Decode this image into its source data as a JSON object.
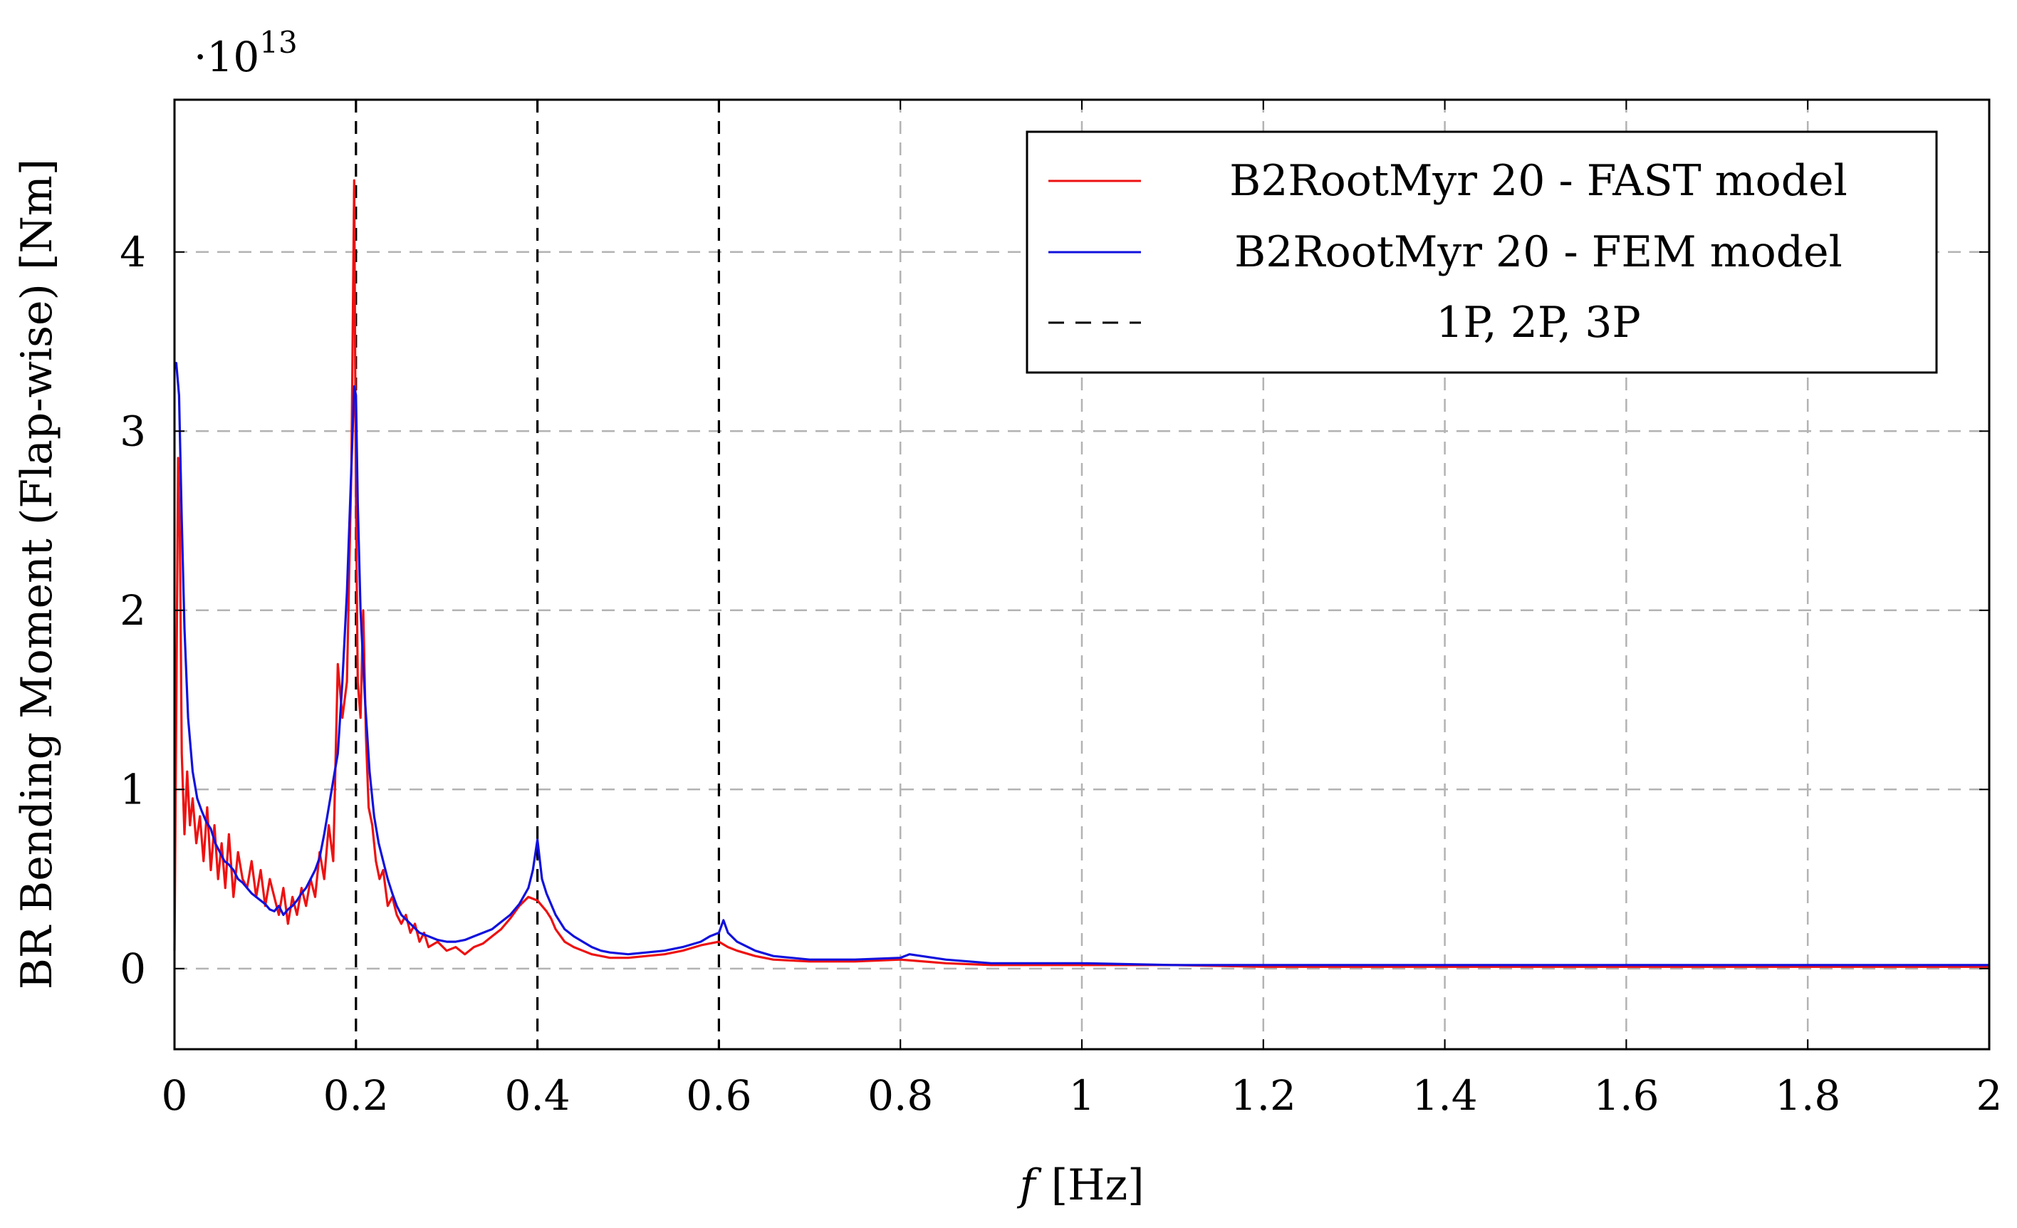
{
  "chart_data": {
    "type": "line",
    "title": "",
    "xlabel_italic": "f",
    "xlabel_unit": "[Hz]",
    "ylabel": "BR Bending Moment (Flap-wise) [Nm]",
    "y_multiplier_base": "·10",
    "y_multiplier_exp": "13",
    "xlim": [
      0,
      2
    ],
    "ylim": [
      -0.45,
      4.85
    ],
    "grid": true,
    "x_ticks": [
      0,
      0.2,
      0.4,
      0.6,
      0.8,
      1,
      1.2,
      1.4,
      1.6,
      1.8,
      2
    ],
    "x_tick_labels": [
      "0",
      "0.2",
      "0.4",
      "0.6",
      "0.8",
      "1",
      "1.2",
      "1.4",
      "1.6",
      "1.8",
      "2"
    ],
    "y_ticks": [
      0,
      1,
      2,
      3,
      4
    ],
    "y_tick_labels": [
      "0",
      "1",
      "2",
      "3",
      "4"
    ],
    "legend_position": "top-right",
    "reference_lines": {
      "name": "1P, 2P, 3P",
      "x": [
        0.2,
        0.4,
        0.6
      ],
      "color": "#000000"
    },
    "series": [
      {
        "name": "B2RootMyr 20 - FAST model",
        "color": "#ee1111",
        "x": [
          0,
          0.004,
          0.006,
          0.008,
          0.011,
          0.014,
          0.017,
          0.02,
          0.024,
          0.028,
          0.032,
          0.036,
          0.04,
          0.044,
          0.048,
          0.052,
          0.056,
          0.06,
          0.065,
          0.07,
          0.075,
          0.08,
          0.085,
          0.09,
          0.095,
          0.1,
          0.105,
          0.11,
          0.115,
          0.12,
          0.125,
          0.13,
          0.135,
          0.14,
          0.145,
          0.15,
          0.155,
          0.16,
          0.165,
          0.17,
          0.175,
          0.18,
          0.185,
          0.19,
          0.195,
          0.198,
          0.2,
          0.202,
          0.205,
          0.208,
          0.211,
          0.214,
          0.218,
          0.222,
          0.226,
          0.23,
          0.235,
          0.24,
          0.245,
          0.25,
          0.255,
          0.26,
          0.265,
          0.27,
          0.275,
          0.28,
          0.29,
          0.3,
          0.31,
          0.32,
          0.33,
          0.34,
          0.35,
          0.36,
          0.37,
          0.38,
          0.39,
          0.4,
          0.405,
          0.41,
          0.415,
          0.42,
          0.43,
          0.44,
          0.45,
          0.46,
          0.47,
          0.48,
          0.5,
          0.52,
          0.54,
          0.56,
          0.58,
          0.6,
          0.61,
          0.62,
          0.64,
          0.66,
          0.7,
          0.75,
          0.8,
          0.85,
          0.9,
          1.0,
          1.1,
          1.2,
          1.3,
          1.4,
          1.5,
          1.6,
          1.7,
          1.8,
          1.9,
          2.0
        ],
        "values": [
          0.1,
          2.85,
          2.4,
          1.2,
          0.75,
          1.1,
          0.8,
          0.95,
          0.7,
          0.85,
          0.6,
          0.9,
          0.55,
          0.8,
          0.5,
          0.7,
          0.45,
          0.75,
          0.4,
          0.65,
          0.5,
          0.45,
          0.6,
          0.4,
          0.55,
          0.35,
          0.5,
          0.4,
          0.3,
          0.45,
          0.25,
          0.4,
          0.3,
          0.45,
          0.35,
          0.5,
          0.4,
          0.65,
          0.5,
          0.8,
          0.6,
          1.7,
          1.4,
          1.6,
          2.8,
          4.4,
          2.6,
          1.6,
          1.4,
          2.0,
          1.3,
          0.9,
          0.8,
          0.6,
          0.5,
          0.55,
          0.35,
          0.4,
          0.3,
          0.25,
          0.3,
          0.2,
          0.25,
          0.15,
          0.2,
          0.12,
          0.15,
          0.1,
          0.12,
          0.08,
          0.12,
          0.14,
          0.18,
          0.22,
          0.28,
          0.35,
          0.4,
          0.38,
          0.35,
          0.32,
          0.28,
          0.22,
          0.15,
          0.12,
          0.1,
          0.08,
          0.07,
          0.06,
          0.06,
          0.07,
          0.08,
          0.1,
          0.13,
          0.15,
          0.12,
          0.1,
          0.07,
          0.05,
          0.04,
          0.04,
          0.05,
          0.03,
          0.02,
          0.02,
          0.02,
          0.01,
          0.01,
          0.01,
          0.01,
          0.01,
          0.01,
          0.01,
          0.01,
          0.01
        ]
      },
      {
        "name": "B2RootMyr 20 - FEM model",
        "color": "#1111dd",
        "x": [
          0,
          0.002,
          0.005,
          0.008,
          0.011,
          0.015,
          0.02,
          0.025,
          0.03,
          0.035,
          0.04,
          0.045,
          0.05,
          0.055,
          0.06,
          0.065,
          0.07,
          0.075,
          0.08,
          0.085,
          0.09,
          0.095,
          0.1,
          0.105,
          0.11,
          0.115,
          0.12,
          0.125,
          0.13,
          0.135,
          0.14,
          0.145,
          0.15,
          0.155,
          0.16,
          0.165,
          0.17,
          0.175,
          0.18,
          0.185,
          0.19,
          0.195,
          0.198,
          0.2,
          0.202,
          0.205,
          0.21,
          0.215,
          0.22,
          0.225,
          0.23,
          0.235,
          0.24,
          0.245,
          0.25,
          0.26,
          0.27,
          0.28,
          0.29,
          0.3,
          0.31,
          0.32,
          0.33,
          0.34,
          0.35,
          0.36,
          0.37,
          0.38,
          0.39,
          0.395,
          0.4,
          0.405,
          0.41,
          0.415,
          0.42,
          0.43,
          0.44,
          0.45,
          0.46,
          0.47,
          0.48,
          0.5,
          0.52,
          0.54,
          0.56,
          0.58,
          0.59,
          0.6,
          0.605,
          0.61,
          0.62,
          0.64,
          0.66,
          0.7,
          0.75,
          0.8,
          0.81,
          0.85,
          0.9,
          1.0,
          1.1,
          1.2,
          1.3,
          1.4,
          1.5,
          1.6,
          1.7,
          1.8,
          1.9,
          2.0
        ],
        "values": [
          3.35,
          3.38,
          3.2,
          2.5,
          1.9,
          1.4,
          1.1,
          0.95,
          0.88,
          0.82,
          0.78,
          0.7,
          0.65,
          0.6,
          0.58,
          0.55,
          0.5,
          0.48,
          0.45,
          0.42,
          0.4,
          0.38,
          0.36,
          0.33,
          0.32,
          0.35,
          0.3,
          0.33,
          0.35,
          0.38,
          0.42,
          0.45,
          0.5,
          0.55,
          0.62,
          0.75,
          0.9,
          1.05,
          1.2,
          1.6,
          2.1,
          2.8,
          3.25,
          3.2,
          2.6,
          2.0,
          1.5,
          1.1,
          0.85,
          0.7,
          0.6,
          0.5,
          0.42,
          0.35,
          0.3,
          0.25,
          0.2,
          0.18,
          0.16,
          0.15,
          0.15,
          0.16,
          0.18,
          0.2,
          0.22,
          0.26,
          0.3,
          0.36,
          0.45,
          0.55,
          0.72,
          0.5,
          0.42,
          0.36,
          0.3,
          0.22,
          0.18,
          0.15,
          0.12,
          0.1,
          0.09,
          0.08,
          0.09,
          0.1,
          0.12,
          0.15,
          0.18,
          0.2,
          0.27,
          0.2,
          0.15,
          0.1,
          0.07,
          0.05,
          0.05,
          0.06,
          0.08,
          0.05,
          0.03,
          0.03,
          0.02,
          0.02,
          0.02,
          0.02,
          0.02,
          0.02,
          0.02,
          0.02,
          0.02,
          0.02
        ]
      }
    ]
  }
}
